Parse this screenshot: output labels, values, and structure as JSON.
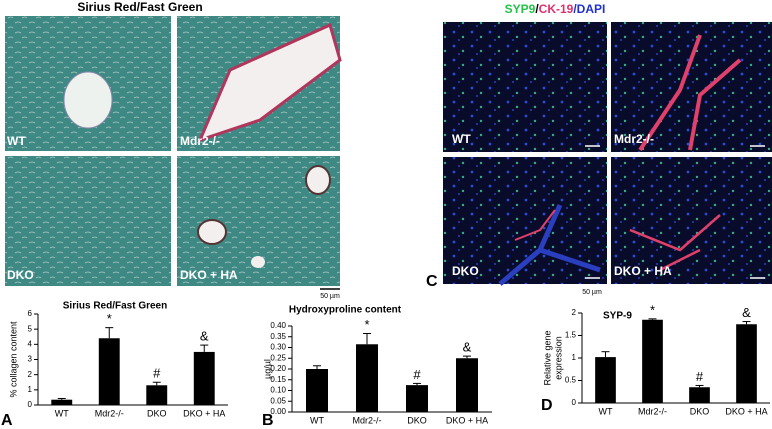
{
  "figure": {
    "left_title": "Sirius Red/Fast Green",
    "left_labels": [
      "WT",
      "Mdr2-/-",
      "DKO",
      "DKO + HA"
    ],
    "left_scale": "50 µm",
    "right_title": [
      {
        "text": "SYP9",
        "color": "#22c44a"
      },
      {
        "text": "/",
        "color": "#000000"
      },
      {
        "text": "CK-19",
        "color": "#e0306a"
      },
      {
        "text": "/DAPI",
        "color": "#2030d0"
      }
    ],
    "right_labels": [
      "WT",
      "Mdr2-/-",
      "DKO",
      "DKO + HA"
    ],
    "right_scale": "50 µm",
    "right_panel": "C"
  },
  "chart_data": [
    {
      "type": "bar",
      "panel": "A",
      "title": "Sirius Red/Fast Green",
      "ylabel": "% collagen content",
      "categories": [
        "WT",
        "Mdr2-/-",
        "DKO",
        "DKO + HA"
      ],
      "values": [
        0.35,
        4.4,
        1.3,
        3.5
      ],
      "errors": [
        0.08,
        0.7,
        0.2,
        0.45
      ],
      "annotations": [
        null,
        "*",
        "#",
        "&"
      ],
      "color": "#000000",
      "ylim": [
        0,
        6
      ],
      "yticks": [
        0,
        1,
        2,
        3,
        4,
        5,
        6
      ]
    },
    {
      "type": "bar",
      "panel": "B",
      "title": "Hydroxyproline content",
      "ylabel": "µg/µl",
      "categories": [
        "WT",
        "Mdr2-/-",
        "DKO",
        "DKO + HA"
      ],
      "values": [
        0.2,
        0.315,
        0.125,
        0.25
      ],
      "errors": [
        0.015,
        0.05,
        0.008,
        0.01
      ],
      "annotations": [
        null,
        "*",
        "#",
        "&"
      ],
      "color": "#000000",
      "ylim": [
        0,
        0.4
      ],
      "yticks": [
        {
          "value": 0,
          "label": "0.00"
        },
        {
          "value": 0.05,
          "label": "0.05"
        },
        {
          "value": 0.1,
          "label": "0.10"
        },
        {
          "value": 0.15,
          "label": "0.15"
        },
        {
          "value": 0.2,
          "label": "0.20"
        },
        {
          "value": 0.25,
          "label": "0.25"
        },
        {
          "value": 0.3,
          "label": "0.30"
        },
        {
          "value": 0.35,
          "label": "0.35"
        },
        {
          "value": 0.4,
          "label": "0.40"
        }
      ]
    },
    {
      "type": "bar",
      "panel": "D",
      "title": "SYP-9",
      "ylabel": [
        "Relative gene",
        "expression"
      ],
      "categories": [
        "WT",
        "Mdr2-/-",
        "DKO",
        "DKO + HA"
      ],
      "values": [
        1.02,
        1.85,
        0.35,
        1.75
      ],
      "errors": [
        0.12,
        0.02,
        0.04,
        0.06
      ],
      "annotations": [
        null,
        "*",
        "#",
        "&"
      ],
      "color": "#000000",
      "ylim": [
        0,
        2
      ],
      "yticks": [
        0,
        0.5,
        1,
        1.5,
        2
      ]
    }
  ]
}
